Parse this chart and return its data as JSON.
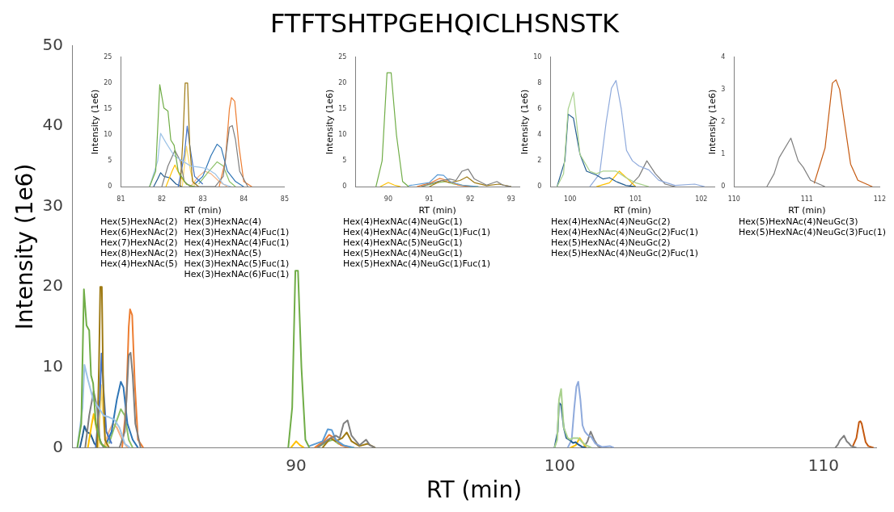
{
  "chart_data": [
    {
      "type": "line",
      "title": "FTFTSHTPGEHQICLHSNSTK",
      "xlabel": "RT (min)",
      "ylabel": "Intensity (1e6)",
      "xlim": [
        81.5,
        112
      ],
      "xticks": [
        90,
        100,
        110
      ],
      "ylim": [
        0,
        50
      ],
      "yticks": [
        0,
        10,
        20,
        30,
        40,
        50
      ],
      "grid": false,
      "legend": false,
      "marker": "none",
      "line_style": "solid",
      "tick_labels": "xy",
      "series": [
        {
          "color": "#70ad47",
          "x": [
            81.7,
            81.85,
            81.95,
            82.05,
            82.15,
            82.22,
            82.3,
            82.4,
            82.6,
            82.8
          ],
          "values": [
            0,
            3,
            19.7,
            15.2,
            14.6,
            9,
            8,
            3,
            0.5,
            0
          ]
        },
        {
          "color": "#9dc3e6",
          "x": [
            81.7,
            81.9,
            81.97,
            82.1,
            82.3,
            82.5,
            82.7,
            82.9,
            83.1,
            83.3,
            83.5,
            83.7
          ],
          "values": [
            0,
            5,
            10.3,
            8.5,
            6,
            5,
            4,
            3.8,
            3.5,
            2.5,
            0.5,
            0
          ]
        },
        {
          "color": "#7f7f7f",
          "x": [
            82.0,
            82.15,
            82.32,
            82.45,
            82.55,
            82.7,
            83.3,
            83.5,
            83.65,
            83.72,
            83.8,
            83.9,
            84.1
          ],
          "values": [
            0,
            4,
            7,
            5,
            1,
            0,
            0,
            2,
            11.5,
            11.8,
            9,
            3,
            0
          ]
        },
        {
          "color": "#9e7a13",
          "x": [
            82.45,
            82.52,
            82.57,
            82.63,
            82.68,
            82.75,
            82.9
          ],
          "values": [
            0,
            10,
            20,
            20,
            8,
            1,
            0
          ]
        },
        {
          "color": "#4472c4",
          "x": [
            82.4,
            82.55,
            82.62,
            82.7,
            82.8,
            83.0
          ],
          "values": [
            0,
            6,
            11.7,
            7,
            2,
            0.5
          ]
        },
        {
          "color": "#2e75b6",
          "x": [
            82.8,
            83.0,
            83.2,
            83.35,
            83.45,
            83.6,
            83.8,
            84.0
          ],
          "values": [
            0.5,
            2,
            6,
            8.2,
            7.5,
            3,
            1,
            0
          ]
        },
        {
          "color": "#ed7d31",
          "x": [
            83.4,
            83.55,
            83.65,
            83.7,
            83.78,
            83.88,
            84.0,
            84.2
          ],
          "values": [
            0,
            5,
            15,
            17.2,
            16.5,
            8,
            1,
            0
          ]
        },
        {
          "color": "#8cc168",
          "x": [
            82.9,
            83.1,
            83.35,
            83.5,
            83.65,
            83.8
          ],
          "values": [
            0.5,
            2.5,
            4.8,
            4,
            1,
            0
          ]
        },
        {
          "color": "#ffc000",
          "x": [
            82.1,
            82.25,
            82.32,
            82.45,
            82.6,
            82.75
          ],
          "values": [
            0,
            3,
            4.2,
            2,
            0.5,
            0
          ]
        },
        {
          "color": "#ffd966",
          "x": [
            82.5,
            82.6,
            82.7,
            82.8
          ],
          "values": [
            0,
            7.8,
            3,
            0
          ]
        },
        {
          "color": "#255e91",
          "x": [
            81.8,
            81.9,
            81.97,
            82.05,
            82.2,
            82.35,
            82.5
          ],
          "values": [
            0,
            1.5,
            2.7,
            2,
            1.7,
            0.5,
            0
          ]
        },
        {
          "color": "#f4b183",
          "x": [
            82.7,
            82.9,
            83.05,
            83.2,
            83.4,
            83.6
          ],
          "values": [
            0,
            2,
            3,
            2.5,
            1,
            0
          ]
        },
        {
          "color": "#70ad47",
          "x": [
            89.7,
            89.85,
            89.97,
            90.07,
            90.2,
            90.35,
            90.5
          ],
          "values": [
            0,
            5,
            22,
            22,
            10,
            1,
            0
          ]
        },
        {
          "color": "#ffc000",
          "x": [
            89.8,
            90.0,
            90.15,
            90.3
          ],
          "values": [
            0,
            0.8,
            0.3,
            0
          ]
        },
        {
          "color": "#7f7f7f",
          "x": [
            90.8,
            91.2,
            91.5,
            91.65,
            91.8,
            91.95,
            92.1,
            92.4,
            92.65,
            92.8,
            93.0
          ],
          "values": [
            0,
            1,
            1.5,
            1.2,
            3,
            3.4,
            1.5,
            0.3,
            1,
            0.3,
            0
          ]
        },
        {
          "color": "#5b9bd5",
          "x": [
            90.5,
            91.0,
            91.2,
            91.35,
            91.5,
            91.8,
            92.2
          ],
          "values": [
            0.2,
            0.8,
            2.3,
            2.2,
            1,
            0.3,
            0
          ]
        },
        {
          "color": "#ed7d31",
          "x": [
            90.7,
            91.05,
            91.25,
            91.45,
            91.7,
            92.0
          ],
          "values": [
            0,
            0.8,
            1.6,
            1.2,
            0.3,
            0
          ]
        },
        {
          "color": "#9e7a13",
          "x": [
            91.0,
            91.3,
            91.5,
            91.75,
            91.92,
            92.1,
            92.4,
            92.7,
            93.0
          ],
          "values": [
            0,
            1.2,
            0.8,
            1.2,
            1.9,
            0.8,
            0.2,
            0.5,
            0
          ]
        },
        {
          "color": "#8cc168",
          "x": [
            90.8,
            91.2,
            91.4,
            91.6,
            92.0,
            92.2
          ],
          "values": [
            0,
            0.8,
            1,
            0.5,
            0.1,
            0
          ]
        },
        {
          "color": "#a9d18e",
          "x": [
            99.8,
            99.9,
            99.97,
            100.05,
            100.15,
            100.3,
            100.4,
            100.5,
            100.7,
            100.85,
            101.0,
            101.2
          ],
          "values": [
            0,
            1,
            6,
            7.3,
            2.5,
            1.2,
            1,
            1.2,
            1.2,
            0.7,
            0.3,
            0
          ]
        },
        {
          "color": "#255e91",
          "x": [
            99.8,
            99.92,
            99.97,
            100.05,
            100.15,
            100.25,
            100.4,
            100.5,
            100.6,
            100.7,
            100.85,
            101.0
          ],
          "values": [
            0,
            2,
            5.6,
            5.3,
            2.5,
            1.2,
            0.9,
            0.6,
            0.7,
            0.4,
            0.1,
            0
          ]
        },
        {
          "color": "#8faadc",
          "x": [
            100.3,
            100.45,
            100.55,
            100.63,
            100.7,
            100.78,
            100.86,
            100.95,
            101.05,
            101.2,
            101.35,
            101.6,
            101.9,
            102.05
          ],
          "values": [
            0,
            1,
            5,
            7.6,
            8.2,
            6,
            2.8,
            2,
            1.6,
            1.3,
            0.5,
            0.1,
            0.2,
            0
          ]
        },
        {
          "color": "#ffc000",
          "x": [
            100.4,
            100.6,
            100.75,
            100.9,
            101.0
          ],
          "values": [
            0,
            0.3,
            1.2,
            0.5,
            0
          ]
        },
        {
          "color": "#7f7f7f",
          "x": [
            100.9,
            101.05,
            101.17,
            101.3,
            101.45,
            101.6
          ],
          "values": [
            0,
            0.8,
            2,
            1,
            0.2,
            0
          ]
        },
        {
          "color": "#7f7f7f",
          "x": [
            110.45,
            110.55,
            110.62,
            110.78,
            110.88,
            110.95,
            111.05,
            111.15,
            111.25
          ],
          "values": [
            0,
            0.4,
            0.9,
            1.5,
            0.8,
            0.6,
            0.2,
            0.1,
            0
          ]
        },
        {
          "color": "#c55a11",
          "x": [
            111.1,
            111.25,
            111.35,
            111.4,
            111.45,
            111.6,
            111.7,
            111.9
          ],
          "values": [
            0.1,
            1.2,
            3.2,
            3.3,
            3,
            0.7,
            0.2,
            0
          ]
        }
      ]
    },
    {
      "type": "line",
      "xlabel": "RT (min)",
      "ylabel": "Intensity (1e6)",
      "xlim": [
        81,
        85
      ],
      "xticks": [
        81,
        82,
        83,
        84,
        85
      ],
      "ylim": [
        0,
        25
      ],
      "yticks": [
        0,
        5,
        10,
        15,
        20,
        25
      ],
      "grid": false,
      "legend": false,
      "marker": "none",
      "line_style": "solid",
      "annotations": [
        "Hex(5)HexNAc(2)\nHex(6)HexNAc(2)\nHex(7)HexNAc(2)\nHex(8)HexNAc(2)\nHex(4)HexNAc(5)",
        "Hex(3)HexNAc(4)\nHex(3)HexNAc(4)Fuc(1)\nHex(4)HexNAc(4)Fuc(1)\nHex(3)HexNAc(5)\nHex(3)HexNAc(5)Fuc(1)\nHex(3)HexNAc(6)Fuc(1)"
      ],
      "series": [
        {
          "color": "#70ad47",
          "x": [
            81.7,
            81.85,
            81.95,
            82.05,
            82.15,
            82.22,
            82.3,
            82.4,
            82.6,
            82.8
          ],
          "values": [
            0,
            3,
            19.7,
            15.2,
            14.6,
            9,
            8,
            3,
            0.5,
            0
          ]
        },
        {
          "color": "#9dc3e6",
          "x": [
            81.7,
            81.9,
            81.97,
            82.1,
            82.3,
            82.5,
            82.7,
            82.9,
            83.1,
            83.3,
            83.5,
            83.7
          ],
          "values": [
            0,
            5,
            10.3,
            8.5,
            6,
            5,
            4,
            3.8,
            3.5,
            2.5,
            0.5,
            0
          ]
        },
        {
          "color": "#7f7f7f",
          "x": [
            82.0,
            82.15,
            82.32,
            82.45,
            82.55,
            82.7,
            83.3,
            83.5,
            83.65,
            83.72,
            83.8,
            83.9,
            84.1
          ],
          "values": [
            0,
            4,
            7,
            5,
            1,
            0,
            0,
            2,
            11.5,
            11.8,
            9,
            3,
            0
          ]
        },
        {
          "color": "#9e7a13",
          "x": [
            82.45,
            82.52,
            82.57,
            82.63,
            82.68,
            82.75,
            82.9
          ],
          "values": [
            0,
            10,
            20,
            20,
            8,
            1,
            0
          ]
        },
        {
          "color": "#4472c4",
          "x": [
            82.4,
            82.55,
            82.62,
            82.7,
            82.8,
            83.0
          ],
          "values": [
            0,
            6,
            11.7,
            7,
            2,
            0.5
          ]
        },
        {
          "color": "#2e75b6",
          "x": [
            82.8,
            83.0,
            83.2,
            83.35,
            83.45,
            83.6,
            83.8,
            84.0
          ],
          "values": [
            0.5,
            2,
            6,
            8.2,
            7.5,
            3,
            1,
            0
          ]
        },
        {
          "color": "#ed7d31",
          "x": [
            83.4,
            83.55,
            83.65,
            83.7,
            83.78,
            83.88,
            84.0,
            84.2
          ],
          "values": [
            0,
            5,
            15,
            17.2,
            16.5,
            8,
            1,
            0
          ]
        },
        {
          "color": "#8cc168",
          "x": [
            82.9,
            83.1,
            83.35,
            83.5,
            83.65,
            83.8
          ],
          "values": [
            0.5,
            2.5,
            4.8,
            4,
            1,
            0
          ]
        },
        {
          "color": "#ffc000",
          "x": [
            82.1,
            82.25,
            82.32,
            82.45,
            82.6,
            82.75
          ],
          "values": [
            0,
            3,
            4.2,
            2,
            0.5,
            0
          ]
        },
        {
          "color": "#ffd966",
          "x": [
            82.5,
            82.6,
            82.7,
            82.8
          ],
          "values": [
            0,
            7.8,
            3,
            0
          ]
        },
        {
          "color": "#255e91",
          "x": [
            81.8,
            81.9,
            81.97,
            82.05,
            82.2,
            82.35,
            82.5
          ],
          "values": [
            0,
            1.5,
            2.7,
            2,
            1.7,
            0.5,
            0
          ]
        },
        {
          "color": "#f4b183",
          "x": [
            82.7,
            82.9,
            83.05,
            83.2,
            83.4,
            83.6
          ],
          "values": [
            0,
            2,
            3,
            2.5,
            1,
            0
          ]
        }
      ]
    },
    {
      "type": "line",
      "xlabel": "RT (min)",
      "ylabel": "Intensity (1e6)",
      "xlim": [
        89.2,
        93.2
      ],
      "xticks": [
        90,
        91,
        92,
        93
      ],
      "ylim": [
        0,
        25
      ],
      "yticks": [
        0,
        5,
        10,
        15,
        20,
        25
      ],
      "grid": false,
      "legend": false,
      "marker": "none",
      "line_style": "solid",
      "annotations": [
        "Hex(4)HexNAc(4)NeuGc(1)\nHex(4)HexNAc(4)NeuGc(1)Fuc(1)\nHex(4)HexNAc(5)NeuGc(1)\nHex(5)HexNAc(4)NeuGc(1)\nHex(5)HexNAc(4)NeuGc(1)Fuc(1)"
      ],
      "series": [
        {
          "color": "#70ad47",
          "x": [
            89.7,
            89.85,
            89.97,
            90.07,
            90.2,
            90.35,
            90.5
          ],
          "values": [
            0,
            5,
            22,
            22,
            10,
            1,
            0
          ]
        },
        {
          "color": "#ffc000",
          "x": [
            89.8,
            90.0,
            90.15,
            90.3
          ],
          "values": [
            0,
            0.8,
            0.3,
            0
          ]
        },
        {
          "color": "#7f7f7f",
          "x": [
            90.8,
            91.2,
            91.5,
            91.65,
            91.8,
            91.95,
            92.1,
            92.4,
            92.65,
            92.8,
            93.0
          ],
          "values": [
            0,
            1,
            1.5,
            1.2,
            3,
            3.4,
            1.5,
            0.3,
            1,
            0.3,
            0
          ]
        },
        {
          "color": "#5b9bd5",
          "x": [
            90.5,
            91.0,
            91.2,
            91.35,
            91.5,
            91.8,
            92.2
          ],
          "values": [
            0.2,
            0.8,
            2.3,
            2.2,
            1,
            0.3,
            0
          ]
        },
        {
          "color": "#ed7d31",
          "x": [
            90.7,
            91.05,
            91.25,
            91.45,
            91.7,
            92.0
          ],
          "values": [
            0,
            0.8,
            1.6,
            1.2,
            0.3,
            0
          ]
        },
        {
          "color": "#9e7a13",
          "x": [
            91.0,
            91.3,
            91.5,
            91.75,
            91.92,
            92.1,
            92.4,
            92.7,
            93.0
          ],
          "values": [
            0,
            1.2,
            0.8,
            1.2,
            1.9,
            0.8,
            0.2,
            0.5,
            0
          ]
        },
        {
          "color": "#8cc168",
          "x": [
            90.8,
            91.2,
            91.4,
            91.6,
            92.0,
            92.2
          ],
          "values": [
            0,
            0.8,
            1,
            0.5,
            0.1,
            0
          ]
        }
      ]
    },
    {
      "type": "line",
      "xlabel": "RT (min)",
      "ylabel": "Intensity (1e6)",
      "xlim": [
        99.7,
        102.2
      ],
      "xticks": [
        100,
        101,
        102
      ],
      "ylim": [
        0,
        10
      ],
      "yticks": [
        0,
        2,
        4,
        6,
        8,
        10
      ],
      "grid": false,
      "legend": false,
      "marker": "none",
      "line_style": "solid",
      "annotations": [
        "Hex(4)HexNAc(4)NeuGc(2)\nHex(4)HexNAc(4)NeuGc(2)Fuc(1)\nHex(5)HexNAc(4)NeuGc(2)\nHex(5)HexNAc(4)NeuGc(2)Fuc(1)"
      ],
      "series": [
        {
          "color": "#a9d18e",
          "x": [
            99.8,
            99.9,
            99.97,
            100.05,
            100.15,
            100.3,
            100.4,
            100.5,
            100.7,
            100.85,
            101.0,
            101.2
          ],
          "values": [
            0,
            1,
            6,
            7.3,
            2.5,
            1.2,
            1,
            1.2,
            1.2,
            0.7,
            0.3,
            0
          ]
        },
        {
          "color": "#255e91",
          "x": [
            99.8,
            99.92,
            99.97,
            100.05,
            100.15,
            100.25,
            100.4,
            100.5,
            100.6,
            100.7,
            100.85,
            101.0
          ],
          "values": [
            0,
            2,
            5.6,
            5.3,
            2.5,
            1.2,
            0.9,
            0.6,
            0.7,
            0.4,
            0.1,
            0
          ]
        },
        {
          "color": "#8faadc",
          "x": [
            100.3,
            100.45,
            100.55,
            100.63,
            100.7,
            100.78,
            100.86,
            100.95,
            101.05,
            101.2,
            101.35,
            101.6,
            101.9,
            102.05
          ],
          "values": [
            0,
            1,
            5,
            7.6,
            8.2,
            6,
            2.8,
            2,
            1.6,
            1.3,
            0.5,
            0.1,
            0.2,
            0
          ]
        },
        {
          "color": "#ffc000",
          "x": [
            100.4,
            100.6,
            100.75,
            100.9,
            101.0
          ],
          "values": [
            0,
            0.3,
            1.2,
            0.5,
            0
          ]
        },
        {
          "color": "#7f7f7f",
          "x": [
            100.9,
            101.05,
            101.17,
            101.3,
            101.45,
            101.6
          ],
          "values": [
            0,
            0.8,
            2,
            1,
            0.2,
            0
          ]
        }
      ]
    },
    {
      "type": "line",
      "xlabel": "RT (min)",
      "ylabel": "Intensity (1e6)",
      "xlim": [
        110,
        112
      ],
      "xticks": [
        110,
        111,
        112
      ],
      "ylim": [
        0,
        4
      ],
      "yticks": [
        0,
        1,
        2,
        3,
        4
      ],
      "grid": false,
      "legend": false,
      "marker": "none",
      "line_style": "solid",
      "annotations": [
        "Hex(5)HexNAc(4)NeuGc(3)\nHex(5)HexNAc(4)NeuGc(3)Fuc(1)"
      ],
      "series": [
        {
          "color": "#7f7f7f",
          "x": [
            110.45,
            110.55,
            110.62,
            110.78,
            110.88,
            110.95,
            111.05,
            111.15,
            111.25
          ],
          "values": [
            0,
            0.4,
            0.9,
            1.5,
            0.8,
            0.6,
            0.2,
            0.1,
            0
          ]
        },
        {
          "color": "#c55a11",
          "x": [
            111.1,
            111.25,
            111.35,
            111.4,
            111.45,
            111.6,
            111.7,
            111.9
          ],
          "values": [
            0.1,
            1.2,
            3.2,
            3.3,
            3,
            0.7,
            0.2,
            0
          ]
        }
      ]
    }
  ]
}
